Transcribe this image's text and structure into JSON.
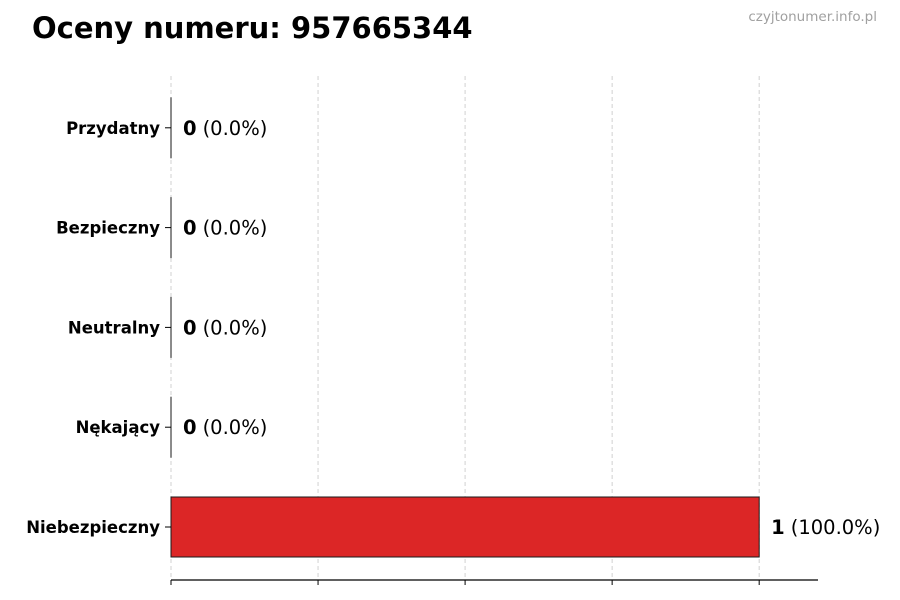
{
  "chart_data": {
    "type": "bar",
    "orientation": "horizontal",
    "title": "Oceny numeru: 957665344",
    "watermark": "czyjtonumer.info.pl",
    "categories": [
      "Niebezpieczny",
      "Nękający",
      "Neutralny",
      "Bezpieczny",
      "Przydatny"
    ],
    "values": [
      1,
      0,
      0,
      0,
      0
    ],
    "percent_labels": [
      "(100.0%)",
      "(0.0%)",
      "(0.0%)",
      "(0.0%)",
      "(0.0%)"
    ],
    "xlim": [
      0,
      1.1
    ],
    "x_gridlines": [
      0,
      0.25,
      0.5,
      0.75,
      1.0
    ],
    "grid": "vertical dashed",
    "x_tick_labels_shown": false,
    "bar_color": "#dc2626",
    "bar_edge_color": "#1a1a1a"
  }
}
